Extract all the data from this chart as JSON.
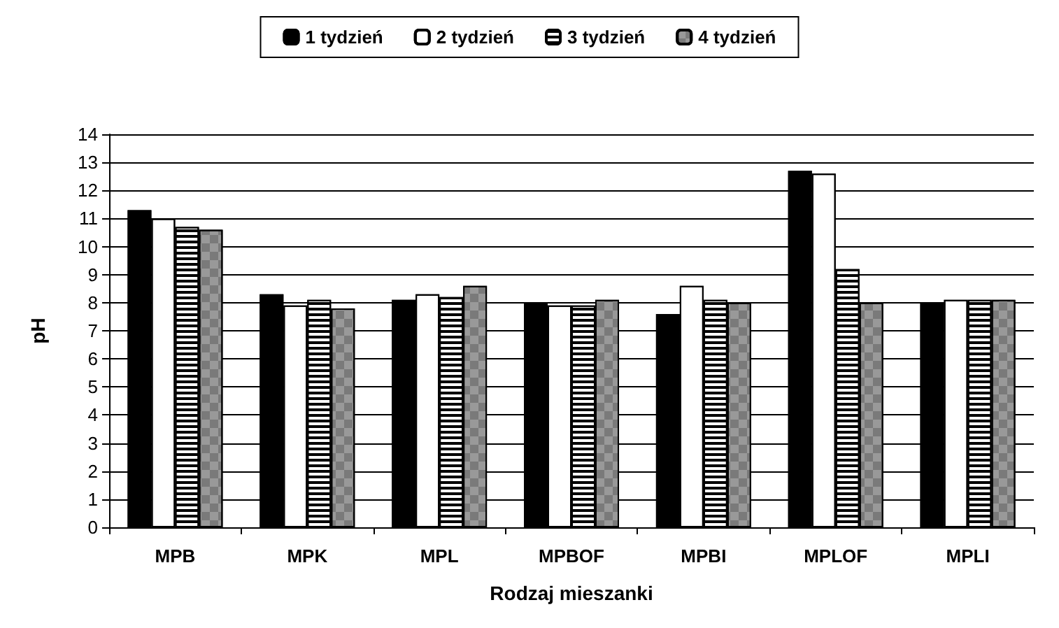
{
  "chart_data": {
    "type": "bar",
    "xlabel": "Rodzaj mieszanki",
    "ylabel": "pH",
    "categories": [
      "MPB",
      "MPK",
      "MPL",
      "MPBOF",
      "MPBI",
      "MPLOF",
      "MPLI"
    ],
    "series": [
      {
        "name": "1 tydzień",
        "color": "#000000",
        "values": [
          11.3,
          8.3,
          8.1,
          8.0,
          7.6,
          12.7,
          8.0
        ]
      },
      {
        "name": "2 tydzień",
        "color": "#ffffff",
        "values": [
          11.0,
          7.9,
          8.3,
          7.9,
          8.6,
          12.6,
          8.1
        ]
      },
      {
        "name": "3 tydzień",
        "color": "#ffffff",
        "values": [
          10.7,
          8.1,
          8.2,
          7.9,
          8.1,
          9.2,
          8.1
        ]
      },
      {
        "name": "4 tydzień",
        "color": "#999999",
        "values": [
          10.6,
          7.8,
          8.6,
          8.1,
          8.0,
          8.0,
          8.1
        ]
      }
    ],
    "ylim": [
      0,
      14
    ],
    "yticks": [
      0,
      1,
      2,
      3,
      4,
      5,
      6,
      7,
      8,
      9,
      10,
      11,
      12,
      13,
      14
    ],
    "grid": "y",
    "legend": "top"
  }
}
